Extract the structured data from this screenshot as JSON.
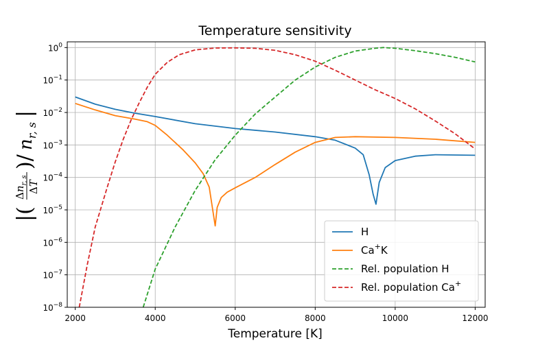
{
  "chart_data": {
    "type": "line",
    "title": "Temperature sensitivity",
    "xlabel": "Temperature [K]",
    "ylabel": "|(Δn_r,s / ΔT) / n_r,s|",
    "x_scale": "linear",
    "y_scale": "log",
    "xlim": [
      1800,
      12250
    ],
    "ylim": [
      1e-08,
      1.5
    ],
    "grid": true,
    "legend_position": "lower-right",
    "x_ticks": [
      2000,
      4000,
      6000,
      8000,
      10000,
      12000
    ],
    "x_tick_labels": [
      "2000",
      "4000",
      "6000",
      "8000",
      "10000",
      "12000"
    ],
    "y_ticks": [
      1e-08,
      1e-07,
      1e-06,
      1e-05,
      0.0001,
      0.001,
      0.01,
      0.1,
      1
    ],
    "y_tick_labels": [
      {
        "base": "10",
        "exp": "−8"
      },
      {
        "base": "10",
        "exp": "−7"
      },
      {
        "base": "10",
        "exp": "−6"
      },
      {
        "base": "10",
        "exp": "−5"
      },
      {
        "base": "10",
        "exp": "−4"
      },
      {
        "base": "10",
        "exp": "−3"
      },
      {
        "base": "10",
        "exp": "−2"
      },
      {
        "base": "10",
        "exp": "−1"
      },
      {
        "base": "10",
        "exp": "0"
      }
    ],
    "series": [
      {
        "name": "H",
        "legend_main": "H",
        "legend_sup": "",
        "legend_tail": "",
        "color": "#1f77b4",
        "dash": "solid",
        "points": [
          [
            2000,
            0.03
          ],
          [
            2500,
            0.018
          ],
          [
            3000,
            0.0125
          ],
          [
            3500,
            0.0095
          ],
          [
            4000,
            0.0075
          ],
          [
            5000,
            0.0045
          ],
          [
            6000,
            0.0032
          ],
          [
            7000,
            0.0025
          ],
          [
            8000,
            0.0018
          ],
          [
            8500,
            0.0014
          ],
          [
            9000,
            0.0008
          ],
          [
            9200,
            0.0005
          ],
          [
            9350,
            0.00012
          ],
          [
            9450,
            3e-05
          ],
          [
            9520,
            1.5e-05
          ],
          [
            9600,
            7e-05
          ],
          [
            9750,
            0.0002
          ],
          [
            10000,
            0.00033
          ],
          [
            10500,
            0.00045
          ],
          [
            11000,
            0.0005
          ],
          [
            12000,
            0.00048
          ]
        ]
      },
      {
        "name": "Ca+K",
        "legend_main": "Ca",
        "legend_sup": "+",
        "legend_tail": "K",
        "color": "#ff7f0e",
        "dash": "solid",
        "points": [
          [
            2000,
            0.019
          ],
          [
            2500,
            0.012
          ],
          [
            3000,
            0.008
          ],
          [
            3500,
            0.0062
          ],
          [
            3800,
            0.0052
          ],
          [
            4000,
            0.004
          ],
          [
            4300,
            0.002
          ],
          [
            4700,
            0.0007
          ],
          [
            5000,
            0.00028
          ],
          [
            5200,
            0.00013
          ],
          [
            5350,
            5e-05
          ],
          [
            5450,
            8e-06
          ],
          [
            5500,
            3.2e-06
          ],
          [
            5550,
            1.2e-05
          ],
          [
            5650,
            2.4e-05
          ],
          [
            5800,
            3.5e-05
          ],
          [
            6000,
            4.8e-05
          ],
          [
            6500,
            0.0001
          ],
          [
            7000,
            0.00025
          ],
          [
            7500,
            0.0006
          ],
          [
            8000,
            0.0012
          ],
          [
            8500,
            0.0017
          ],
          [
            9000,
            0.0018
          ],
          [
            10000,
            0.0017
          ],
          [
            11000,
            0.0015
          ],
          [
            12000,
            0.0012
          ]
        ]
      },
      {
        "name": "Rel. population H",
        "legend_main": "Rel. population H",
        "legend_sup": "",
        "legend_tail": "",
        "color": "#2ca02c",
        "dash": "dashed",
        "points": [
          [
            3700,
            1e-08
          ],
          [
            4000,
            1.5e-07
          ],
          [
            4500,
            3e-06
          ],
          [
            5000,
            4e-05
          ],
          [
            5500,
            0.00035
          ],
          [
            6000,
            0.002
          ],
          [
            6500,
            0.009
          ],
          [
            7000,
            0.03
          ],
          [
            7500,
            0.1
          ],
          [
            8000,
            0.25
          ],
          [
            8500,
            0.5
          ],
          [
            9000,
            0.78
          ],
          [
            9500,
            0.95
          ],
          [
            9700,
            1.0
          ],
          [
            10000,
            0.95
          ],
          [
            10500,
            0.8
          ],
          [
            11000,
            0.65
          ],
          [
            11500,
            0.5
          ],
          [
            12000,
            0.36
          ]
        ]
      },
      {
        "name": "Rel. population Ca+",
        "legend_main": "Rel. population Ca",
        "legend_sup": "+",
        "legend_tail": "",
        "color": "#d62728",
        "dash": "dashed",
        "points": [
          [
            2100,
            1e-08
          ],
          [
            2300,
            2e-07
          ],
          [
            2500,
            3e-06
          ],
          [
            2800,
            5e-05
          ],
          [
            3000,
            0.0003
          ],
          [
            3200,
            0.0015
          ],
          [
            3400,
            0.006
          ],
          [
            3600,
            0.02
          ],
          [
            3800,
            0.06
          ],
          [
            4000,
            0.15
          ],
          [
            4300,
            0.35
          ],
          [
            4600,
            0.6
          ],
          [
            5000,
            0.85
          ],
          [
            5500,
            0.97
          ],
          [
            6000,
            0.98
          ],
          [
            6500,
            0.95
          ],
          [
            7000,
            0.82
          ],
          [
            7500,
            0.6
          ],
          [
            8000,
            0.38
          ],
          [
            8500,
            0.2
          ],
          [
            9000,
            0.1
          ],
          [
            9500,
            0.05
          ],
          [
            10000,
            0.027
          ],
          [
            10500,
            0.013
          ],
          [
            11000,
            0.0055
          ],
          [
            11500,
            0.0022
          ],
          [
            12000,
            0.00075
          ]
        ]
      }
    ]
  }
}
